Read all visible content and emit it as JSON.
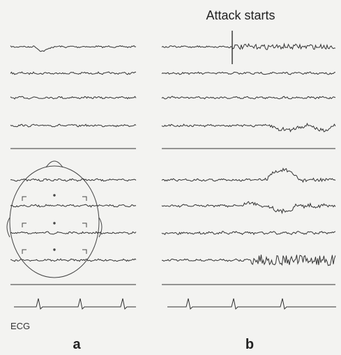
{
  "annotation": "Attack starts",
  "ecg_label": "ECG",
  "panels": {
    "left": "a",
    "right": "b"
  }
}
